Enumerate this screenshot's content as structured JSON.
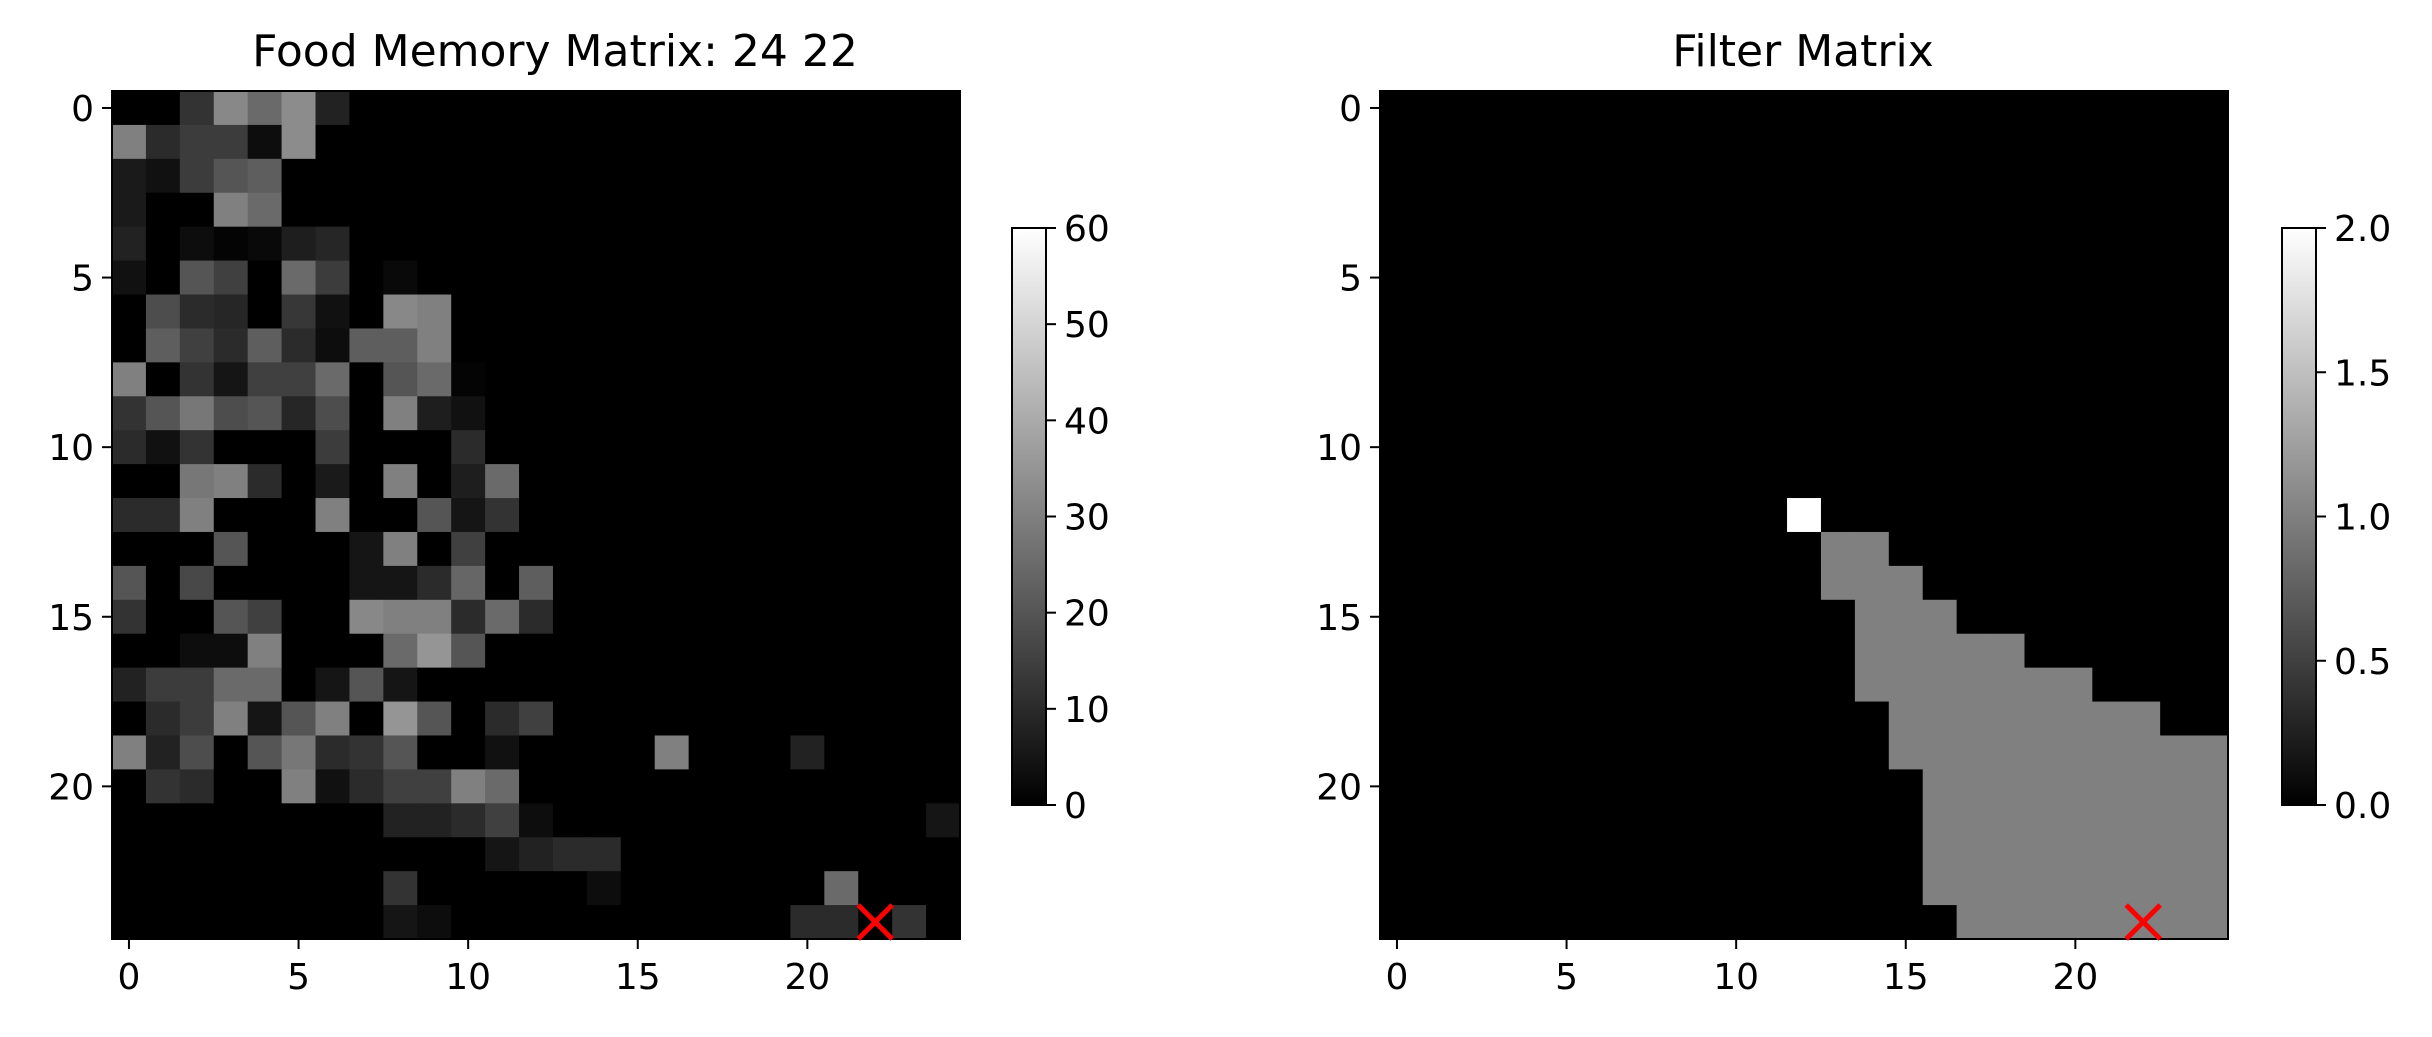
{
  "chart_data": [
    {
      "type": "heatmap",
      "title": "Food Memory Matrix: 24 22",
      "colormap": "gray",
      "shape": [
        25,
        25
      ],
      "x_ticks": [
        0,
        5,
        10,
        15,
        20
      ],
      "y_ticks": [
        0,
        5,
        10,
        15,
        20
      ],
      "colorbar": {
        "range": [
          0,
          60
        ],
        "ticks": [
          0,
          10,
          20,
          30,
          40,
          50,
          60
        ]
      },
      "marker": {
        "symbol": "x",
        "color": "#ff0000",
        "row": 24,
        "col": 22
      },
      "values": [
        [
          0,
          0,
          12,
          32,
          25,
          33,
          8,
          0,
          0,
          0,
          0,
          0,
          0,
          0,
          0,
          0,
          0,
          0,
          0,
          0,
          0,
          0,
          0,
          0,
          0
        ],
        [
          30,
          10,
          14,
          14,
          3,
          33,
          0,
          0,
          0,
          0,
          0,
          0,
          0,
          0,
          0,
          0,
          0,
          0,
          0,
          0,
          0,
          0,
          0,
          0,
          0
        ],
        [
          6,
          4,
          14,
          20,
          22,
          0,
          0,
          0,
          0,
          0,
          0,
          0,
          0,
          0,
          0,
          0,
          0,
          0,
          0,
          0,
          0,
          0,
          0,
          0,
          0
        ],
        [
          6,
          0,
          0,
          30,
          25,
          0,
          0,
          0,
          0,
          0,
          0,
          0,
          0,
          0,
          0,
          0,
          0,
          0,
          0,
          0,
          0,
          0,
          0,
          0,
          0
        ],
        [
          8,
          0,
          3,
          1,
          2,
          7,
          9,
          0,
          0,
          0,
          0,
          0,
          0,
          0,
          0,
          0,
          0,
          0,
          0,
          0,
          0,
          0,
          0,
          0,
          0
        ],
        [
          4,
          0,
          20,
          15,
          0,
          25,
          14,
          0,
          2,
          0,
          0,
          0,
          0,
          0,
          0,
          0,
          0,
          0,
          0,
          0,
          0,
          0,
          0,
          0,
          0
        ],
        [
          0,
          18,
          10,
          9,
          0,
          13,
          4,
          0,
          32,
          30,
          0,
          0,
          0,
          0,
          0,
          0,
          0,
          0,
          0,
          0,
          0,
          0,
          0,
          0,
          0
        ],
        [
          0,
          22,
          15,
          10,
          22,
          10,
          3,
          22,
          22,
          30,
          0,
          0,
          0,
          0,
          0,
          0,
          0,
          0,
          0,
          0,
          0,
          0,
          0,
          0,
          0
        ],
        [
          30,
          0,
          12,
          5,
          15,
          15,
          25,
          0,
          20,
          25,
          1,
          0,
          0,
          0,
          0,
          0,
          0,
          0,
          0,
          0,
          0,
          0,
          0,
          0,
          0
        ],
        [
          12,
          20,
          28,
          18,
          20,
          9,
          18,
          0,
          30,
          7,
          4,
          0,
          0,
          0,
          0,
          0,
          0,
          0,
          0,
          0,
          0,
          0,
          0,
          0,
          0
        ],
        [
          10,
          4,
          12,
          0,
          0,
          0,
          14,
          0,
          0,
          0,
          10,
          0,
          0,
          0,
          0,
          0,
          0,
          0,
          0,
          0,
          0,
          0,
          0,
          0,
          0
        ],
        [
          0,
          0,
          28,
          30,
          10,
          0,
          6,
          0,
          30,
          0,
          7,
          25,
          0,
          0,
          0,
          0,
          0,
          0,
          0,
          0,
          0,
          0,
          0,
          0,
          0
        ],
        [
          10,
          10,
          30,
          0,
          0,
          0,
          30,
          0,
          0,
          20,
          5,
          12,
          0,
          0,
          0,
          0,
          0,
          0,
          0,
          0,
          0,
          0,
          0,
          0,
          0
        ],
        [
          0,
          0,
          0,
          20,
          0,
          0,
          0,
          5,
          30,
          0,
          15,
          0,
          0,
          0,
          0,
          0,
          0,
          0,
          0,
          0,
          0,
          0,
          0,
          0,
          0
        ],
        [
          20,
          0,
          17,
          0,
          0,
          0,
          0,
          5,
          5,
          10,
          24,
          0,
          22,
          0,
          0,
          0,
          0,
          0,
          0,
          0,
          0,
          0,
          0,
          0,
          0
        ],
        [
          12,
          0,
          0,
          20,
          15,
          0,
          0,
          32,
          30,
          30,
          10,
          25,
          10,
          0,
          0,
          0,
          0,
          0,
          0,
          0,
          0,
          0,
          0,
          0,
          0
        ],
        [
          0,
          0,
          3,
          3,
          30,
          0,
          0,
          0,
          25,
          35,
          20,
          0,
          0,
          0,
          0,
          0,
          0,
          0,
          0,
          0,
          0,
          0,
          0,
          0,
          0
        ],
        [
          8,
          14,
          14,
          25,
          25,
          0,
          5,
          20,
          5,
          0,
          0,
          0,
          0,
          0,
          0,
          0,
          0,
          0,
          0,
          0,
          0,
          0,
          0,
          0,
          0
        ],
        [
          0,
          10,
          14,
          30,
          5,
          20,
          30,
          0,
          35,
          20,
          0,
          10,
          15,
          0,
          0,
          0,
          0,
          0,
          0,
          0,
          0,
          0,
          0,
          0,
          0
        ],
        [
          30,
          8,
          18,
          0,
          20,
          28,
          10,
          12,
          20,
          0,
          0,
          4,
          0,
          0,
          0,
          0,
          30,
          0,
          0,
          0,
          8,
          0,
          0,
          0,
          0
        ],
        [
          0,
          12,
          10,
          0,
          0,
          30,
          4,
          10,
          15,
          15,
          30,
          25,
          0,
          0,
          0,
          0,
          0,
          0,
          0,
          0,
          0,
          0,
          0,
          0,
          0
        ],
        [
          0,
          0,
          0,
          0,
          0,
          0,
          0,
          0,
          8,
          8,
          10,
          15,
          3,
          0,
          0,
          0,
          0,
          0,
          0,
          0,
          0,
          0,
          0,
          0,
          5
        ],
        [
          0,
          0,
          0,
          0,
          0,
          0,
          0,
          0,
          0,
          0,
          0,
          5,
          8,
          10,
          10,
          0,
          0,
          0,
          0,
          0,
          0,
          0,
          0,
          0,
          0
        ],
        [
          0,
          0,
          0,
          0,
          0,
          0,
          0,
          0,
          12,
          0,
          0,
          0,
          0,
          0,
          3,
          0,
          0,
          0,
          0,
          0,
          0,
          25,
          0,
          0,
          0
        ],
        [
          0,
          0,
          0,
          0,
          0,
          0,
          0,
          0,
          5,
          3,
          0,
          0,
          0,
          0,
          0,
          0,
          0,
          0,
          0,
          0,
          10,
          10,
          0,
          12,
          0
        ]
      ]
    },
    {
      "type": "heatmap",
      "title": "Filter Matrix",
      "colormap": "gray",
      "shape": [
        25,
        25
      ],
      "x_ticks": [
        0,
        5,
        10,
        15,
        20
      ],
      "y_ticks": [
        0,
        5,
        10,
        15,
        20
      ],
      "colorbar": {
        "range": [
          0,
          2
        ],
        "ticks": [
          0.0,
          0.5,
          1.0,
          1.5,
          2.0
        ],
        "tick_labels": [
          "0.0",
          "0.5",
          "1.0",
          "1.5",
          "2.0"
        ]
      },
      "marker": {
        "symbol": "x",
        "color": "#ff0000",
        "row": 24,
        "col": 22
      },
      "peak_cell": {
        "row": 12,
        "col": 12,
        "value": 2
      },
      "filled_value": 1,
      "filled_row_starts": [
        [
          13,
          13,
          14
        ],
        [
          14,
          13,
          15
        ],
        [
          15,
          14,
          16
        ],
        [
          16,
          14,
          18
        ],
        [
          17,
          14,
          20
        ],
        [
          18,
          15,
          22
        ],
        [
          19,
          15,
          24
        ],
        [
          20,
          16,
          24
        ],
        [
          21,
          16,
          24
        ],
        [
          22,
          16,
          24
        ],
        [
          23,
          16,
          24
        ],
        [
          24,
          17,
          24
        ]
      ]
    }
  ]
}
